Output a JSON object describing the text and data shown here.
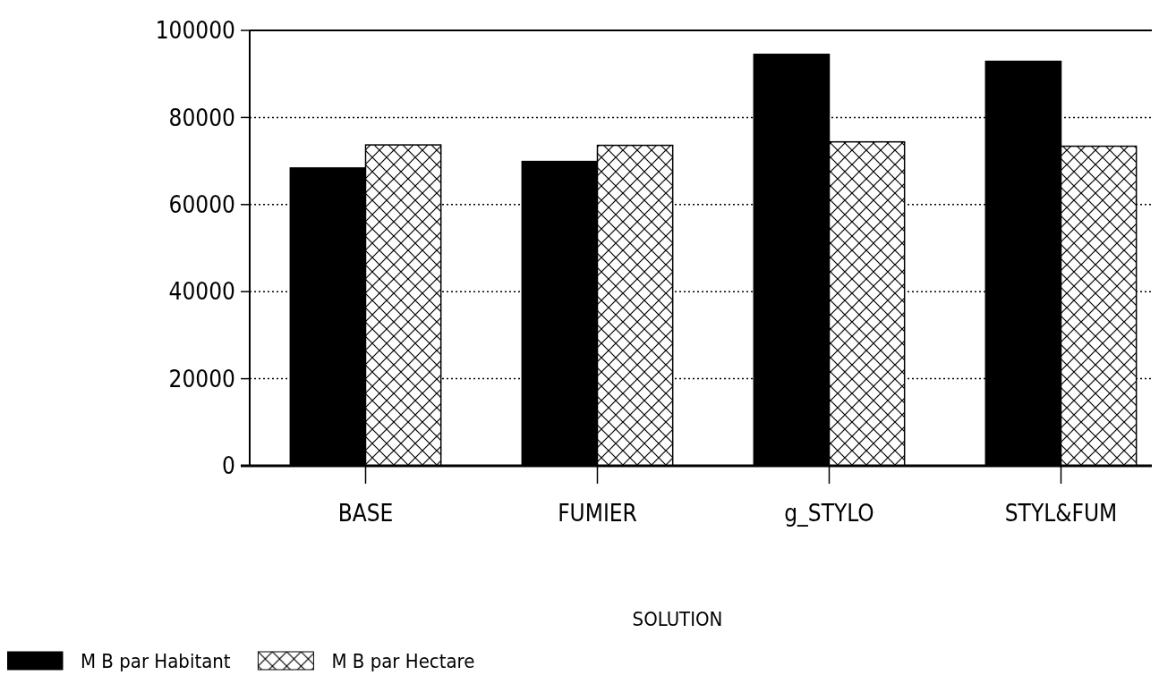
{
  "chart_data": {
    "type": "bar",
    "xlabel": "SOLUTION",
    "categories": [
      "BASE",
      "FUMIER",
      "g_STYLO",
      "STYL&FUM"
    ],
    "series": [
      {
        "name": "M B par Habitant",
        "color": "#000000",
        "values": [
          68400,
          69900,
          94500,
          92900
        ]
      },
      {
        "name": "M B par Hectare",
        "color": "#000000",
        "values": [
          73700,
          73600,
          74400,
          73400
        ]
      }
    ],
    "ylim": [
      0,
      100000
    ],
    "yticks": [
      0,
      20000,
      40000,
      60000,
      80000,
      100000
    ],
    "grid": "y",
    "legend": "bottom left"
  }
}
